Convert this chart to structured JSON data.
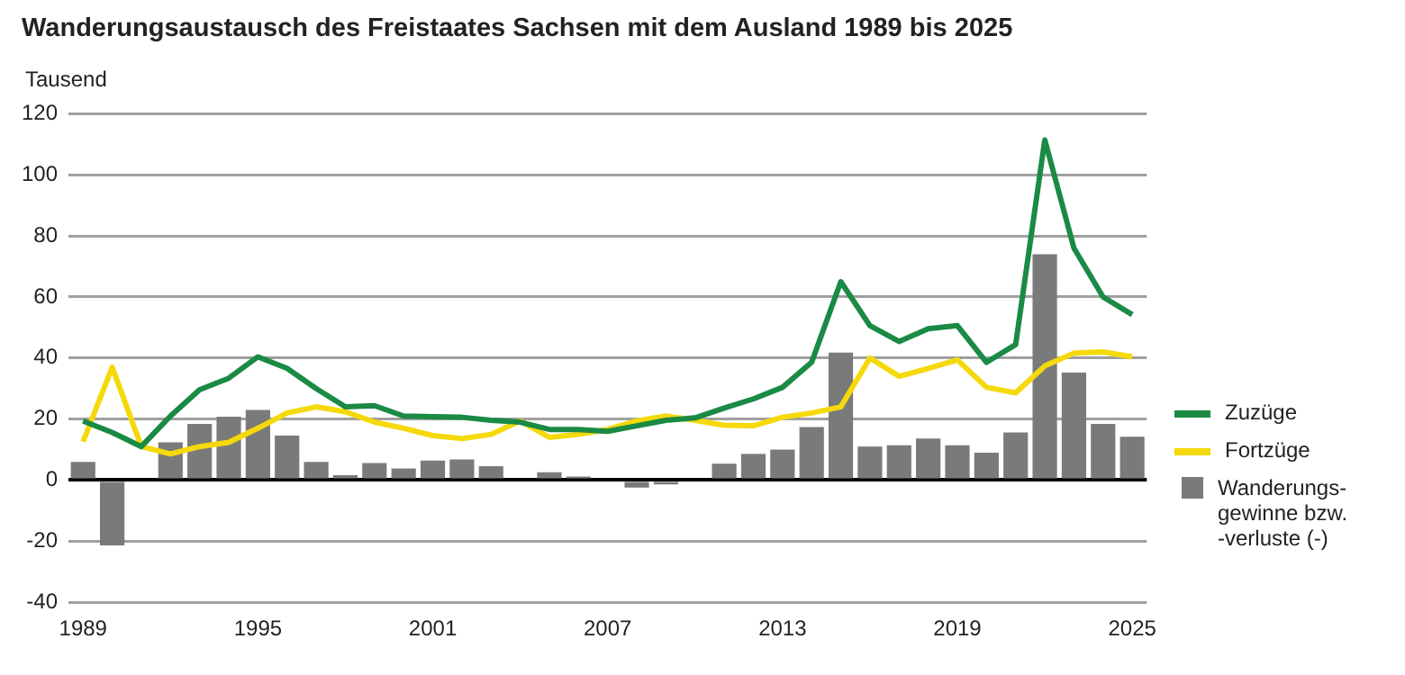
{
  "chart_data": {
    "type": "line",
    "title": "Wanderungsaustausch des Freistaates Sachsen mit dem Ausland 1989 bis 2025",
    "ylabel": "Tausend",
    "x": [
      1989,
      1990,
      1991,
      1992,
      1993,
      1994,
      1995,
      1996,
      1997,
      1998,
      1999,
      2000,
      2001,
      2002,
      2003,
      2004,
      2005,
      2006,
      2007,
      2008,
      2009,
      2010,
      2011,
      2012,
      2013,
      2014,
      2015,
      2016,
      2017,
      2018,
      2019,
      2020,
      2021,
      2022,
      2023,
      2024,
      2025
    ],
    "xlim": [
      1988.5,
      2025.5
    ],
    "xticks": [
      1989,
      1995,
      2001,
      2007,
      2013,
      2019,
      2025
    ],
    "ylim": [
      -40,
      120
    ],
    "yticks": [
      -40,
      -20,
      0,
      20,
      40,
      60,
      80,
      100,
      120
    ],
    "grid": "y",
    "legend": "right",
    "marker": "none",
    "series": [
      {
        "name": "Zuzüge",
        "color": "#1a8a45",
        "values": [
          19.4,
          15.6,
          11,
          21,
          29.6,
          33.4,
          40.4,
          36.6,
          30,
          24,
          24.4,
          21,
          20.8,
          20.6,
          19.6,
          19,
          16.6,
          16.6,
          16,
          17.8,
          19.6,
          20.4,
          23.6,
          26.6,
          30.4,
          38.6,
          65,
          50.6,
          45.4,
          49.6,
          50.6,
          38.6,
          44.4,
          111.4,
          76,
          60,
          54.2
        ]
      },
      {
        "name": "Fortzüge",
        "color": "#f5d90a",
        "values": [
          12.6,
          37,
          11,
          8.6,
          11,
          12.4,
          17,
          22,
          24,
          22.4,
          19,
          17,
          14.6,
          13.6,
          15,
          19.4,
          14,
          15,
          16.6,
          19.4,
          21,
          19.6,
          18,
          17.8,
          20.6,
          22,
          24,
          40,
          34,
          36.6,
          39.4,
          30.4,
          28.6,
          37.4,
          41.6,
          42,
          40.4
        ]
      },
      {
        "name": "Wanderungs-gewinne bzw. -verluste (-)",
        "type": "bar",
        "color": "#7a7a7a",
        "values": [
          6,
          -21.4,
          0,
          12.4,
          18.4,
          20.8,
          23,
          14.6,
          6,
          1.6,
          5.6,
          3.8,
          6.4,
          6.8,
          4.6,
          0,
          2.6,
          1.2,
          0,
          -2.4,
          -1.4,
          0,
          5.4,
          8.6,
          10,
          17.4,
          41.8,
          11,
          11.4,
          13.6,
          11.4,
          9,
          15.6,
          74,
          35.2,
          18.4,
          14.2
        ]
      }
    ]
  }
}
